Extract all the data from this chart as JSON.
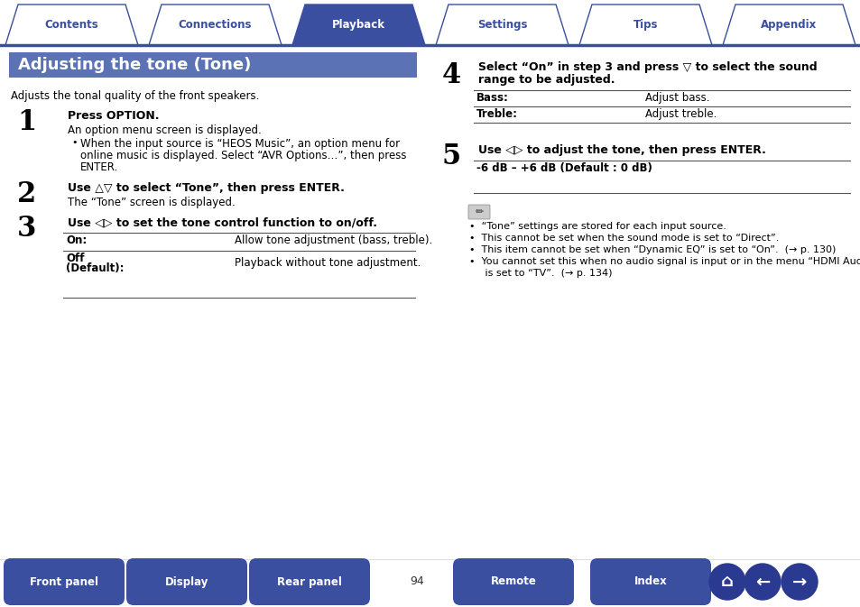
{
  "bg_color": "#ffffff",
  "tab_color_active": "#3a4fa0",
  "tab_color_inactive": "#ffffff",
  "tab_border_color": "#3a4fa0",
  "tab_text_active": "#ffffff",
  "tab_text_inactive": "#3a4fa0",
  "tabs": [
    "Contents",
    "Connections",
    "Playback",
    "Settings",
    "Tips",
    "Appendix"
  ],
  "active_tab": 2,
  "title_bg": "#5b73b5",
  "title_text": "Adjusting the tone (Tone)",
  "title_color": "#ffffff",
  "page_number": "94",
  "bottom_buttons": [
    "Front panel",
    "Display",
    "Rear panel",
    "Remote",
    "Index"
  ],
  "btn_color_gradient_top": "#5566bb",
  "btn_color_gradient_bot": "#2a3a90",
  "btn_color": "#3a4fa0",
  "btn_text_color": "#ffffff",
  "body_text_color": "#000000",
  "step_num_color": "#000000",
  "table_line_color": "#555555",
  "note_text_color": "#000000"
}
